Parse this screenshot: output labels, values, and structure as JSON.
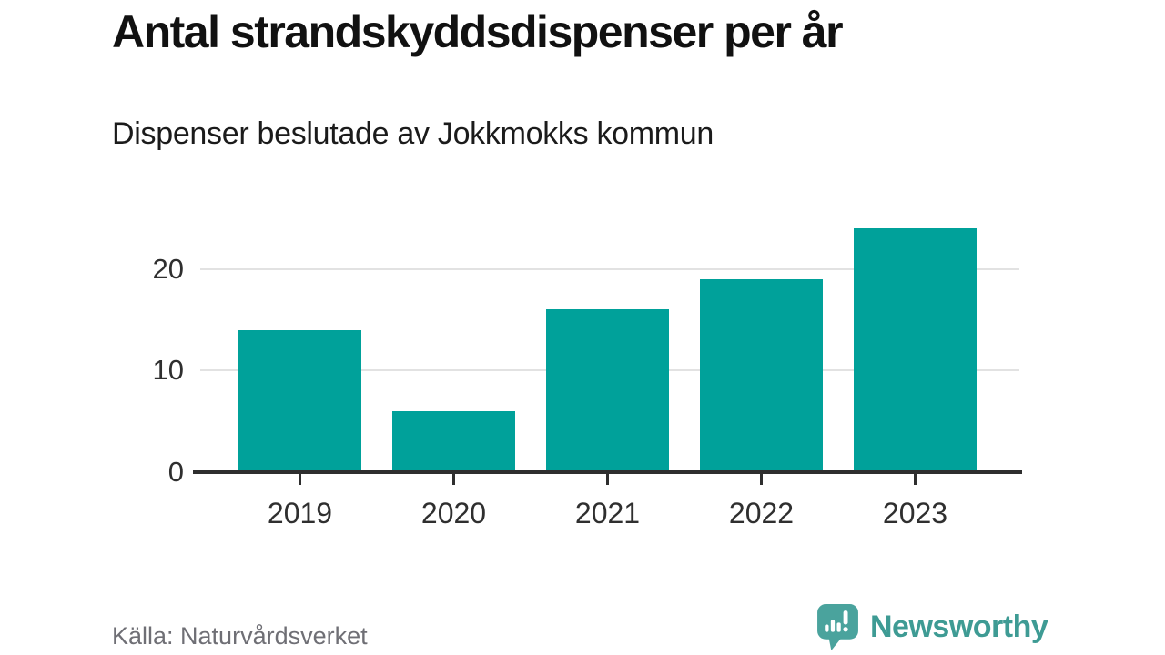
{
  "header": {
    "title": "Antal strandskyddsdispenser per år",
    "subtitle": "Dispenser beslutade av Jokkmokks kommun"
  },
  "chart_data": {
    "type": "bar",
    "title": "Antal strandskyddsdispenser per år",
    "subtitle": "Dispenser beslutade av Jokkmokks kommun",
    "categories": [
      "2019",
      "2020",
      "2021",
      "2022",
      "2023"
    ],
    "values": [
      14,
      6,
      16,
      19,
      24
    ],
    "xlabel": "",
    "ylabel": "",
    "ylim": [
      0,
      25
    ],
    "yticks": [
      0,
      10,
      20
    ],
    "grid": true,
    "legend": "none",
    "bar_color": "#00A19A"
  },
  "footer": {
    "source": "Källa: Naturvårdsverket",
    "brand": {
      "name": "Newsworthy",
      "icon": "bar-chart-speech-bubble",
      "text_color": "#3E9B94",
      "icon_color": "#4AA39D"
    }
  },
  "colors": {
    "bar": "#00A19A",
    "axis": "#2E2E2E",
    "grid": "#E2E2E2",
    "text": "#111111",
    "tick_text": "#2F2F2F",
    "muted": "#6F6F75"
  }
}
